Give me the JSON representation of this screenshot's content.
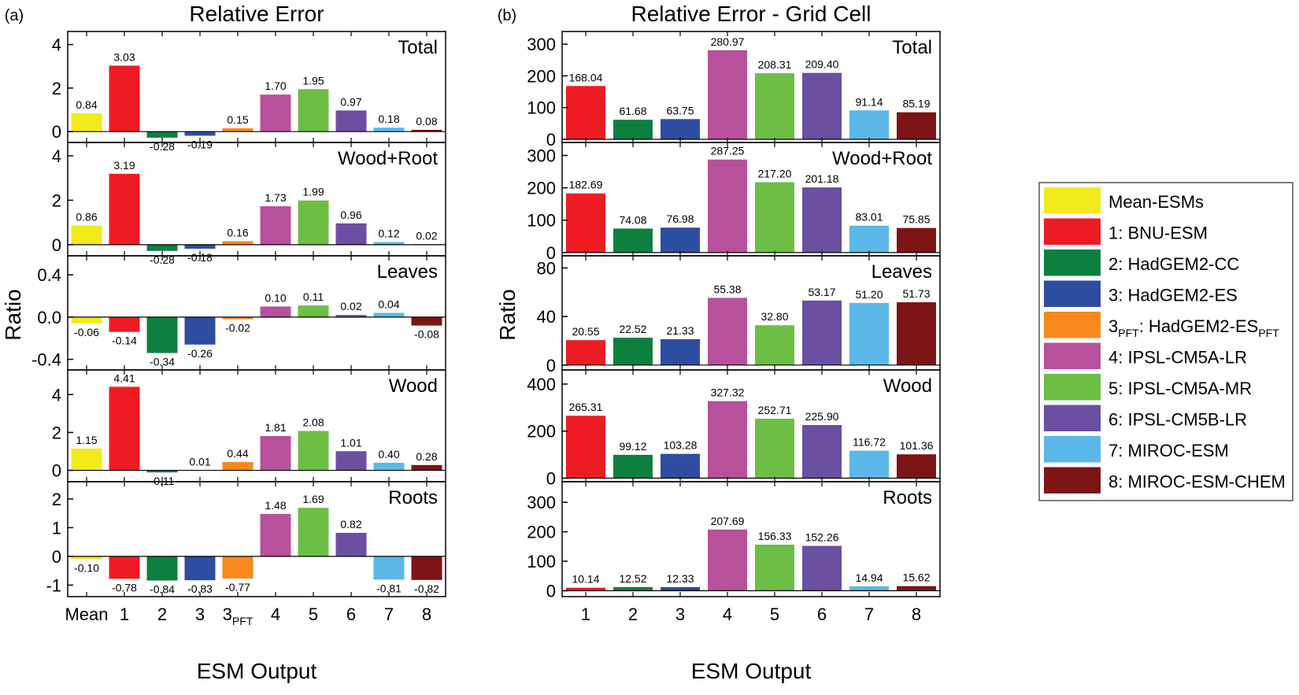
{
  "categories_a": [
    "Mean",
    "1",
    "2",
    "3",
    "3PFT",
    "4",
    "5",
    "6",
    "7",
    "8"
  ],
  "categories_b": [
    "1",
    "2",
    "3",
    "4",
    "5",
    "6",
    "7",
    "8"
  ],
  "colors": {
    "Mean": "#f2ea1d",
    "1": "#ed1c24",
    "2": "#0d8040",
    "3": "#2e4da0",
    "3PFT": "#f7891f",
    "4": "#b8519c",
    "5": "#6cbf44",
    "6": "#6b4fa1",
    "7": "#5bb8e8",
    "8": "#7d1416"
  },
  "legend": [
    {
      "key": "Mean",
      "label": "Mean-ESMs"
    },
    {
      "key": "1",
      "label": "1: BNU-ESM"
    },
    {
      "key": "2",
      "label": "2: HadGEM2-CC"
    },
    {
      "key": "3",
      "label": "3: HadGEM2-ES"
    },
    {
      "key": "3PFT",
      "label": "3",
      "sub": "PFT",
      "label2": ": HadGEM2-ES",
      "sub2": "PFT"
    },
    {
      "key": "4",
      "label": "4: IPSL-CM5A-LR"
    },
    {
      "key": "5",
      "label": "5: IPSL-CM5A-MR"
    },
    {
      "key": "6",
      "label": "6: IPSL-CM5B-LR"
    },
    {
      "key": "7",
      "label": "7: MIROC-ESM"
    },
    {
      "key": "8",
      "label": "8: MIROC-ESM-CHEM"
    }
  ],
  "chart_data": [
    {
      "type": "bar",
      "tag": "(a)",
      "title": "Relative Error",
      "xlabel": "ESM Output",
      "ylabel": "Ratio",
      "x_tick_labels": [
        {
          "text": "Mean"
        },
        {
          "text": "1"
        },
        {
          "text": "2"
        },
        {
          "text": "3"
        },
        {
          "text": "3",
          "sub": "PFT"
        },
        {
          "text": "4"
        },
        {
          "text": "5"
        },
        {
          "text": "6"
        },
        {
          "text": "7"
        },
        {
          "text": "8"
        }
      ],
      "categories": [
        "Mean",
        "1",
        "2",
        "3",
        "3PFT",
        "4",
        "5",
        "6",
        "7",
        "8"
      ],
      "panels": [
        {
          "name": "Total",
          "ylim": [
            -0.5,
            4.6
          ],
          "ticks": [
            0,
            2,
            4
          ],
          "tick_labels": [
            "0",
            "2",
            "4"
          ],
          "values": [
            0.84,
            3.03,
            -0.28,
            -0.19,
            0.15,
            1.7,
            1.95,
            0.97,
            0.18,
            0.08
          ],
          "labels": [
            "0.84",
            "3.03",
            "-0.28",
            "-0.19",
            "0.15",
            "1.70",
            "1.95",
            "0.97",
            "0.18",
            "0.08"
          ]
        },
        {
          "name": "Wood+Root",
          "ylim": [
            -0.5,
            4.6
          ],
          "ticks": [
            0,
            2,
            4
          ],
          "tick_labels": [
            "0",
            "2",
            "4"
          ],
          "values": [
            0.86,
            3.19,
            -0.28,
            -0.18,
            0.16,
            1.73,
            1.99,
            0.96,
            0.12,
            0.02
          ],
          "labels": [
            "0.86",
            "3.19",
            "-0.28",
            "-0.18",
            "0.16",
            "1.73",
            "1.99",
            "0.96",
            "0.12",
            "0.02"
          ]
        },
        {
          "name": "Leaves",
          "ylim": [
            -0.5,
            0.58
          ],
          "ticks": [
            -0.4,
            0,
            0.4
          ],
          "tick_labels": [
            "-0.4",
            "0.0",
            "0.4"
          ],
          "values": [
            -0.06,
            -0.14,
            -0.34,
            -0.26,
            -0.02,
            0.1,
            0.11,
            0.02,
            0.04,
            -0.08
          ],
          "labels": [
            "-0.06",
            "-0.14",
            "-0.34",
            "-0.26",
            "-0.02",
            "0.10",
            "0.11",
            "0.02",
            "0.04",
            "-0.08"
          ]
        },
        {
          "name": "Wood",
          "ylim": [
            -0.6,
            5.3
          ],
          "ticks": [
            0,
            2,
            4
          ],
          "tick_labels": [
            "0",
            "2",
            "4"
          ],
          "values": [
            1.15,
            4.41,
            -0.11,
            0.01,
            0.44,
            1.81,
            2.08,
            1.01,
            0.4,
            0.28
          ],
          "labels": [
            "1.15",
            "4.41",
            "-0.11",
            "0.01",
            "0.44",
            "1.81",
            "2.08",
            "1.01",
            "0.40",
            "0.28"
          ]
        },
        {
          "name": "Roots",
          "ylim": [
            -1.4,
            2.6
          ],
          "ticks": [
            -1,
            0,
            1,
            2
          ],
          "tick_labels": [
            "-1",
            "0",
            "1",
            "2"
          ],
          "values": [
            -0.1,
            -0.78,
            -0.84,
            -0.83,
            -0.77,
            1.48,
            1.69,
            0.82,
            -0.81,
            -0.82
          ],
          "labels": [
            "-0.10",
            "-0.78",
            "-0.84",
            "-0.83",
            "-0.77",
            "1.48",
            "1.69",
            "0.82",
            "-0.81",
            "-0.82"
          ]
        }
      ]
    },
    {
      "type": "bar",
      "tag": "(b)",
      "title": "Relative Error - Grid Cell",
      "xlabel": "ESM Output",
      "ylabel": "Ratio",
      "x_tick_labels": [
        {
          "text": "1"
        },
        {
          "text": "2"
        },
        {
          "text": "3"
        },
        {
          "text": "4"
        },
        {
          "text": "5"
        },
        {
          "text": "6"
        },
        {
          "text": "7"
        },
        {
          "text": "8"
        }
      ],
      "categories": [
        "1",
        "2",
        "3",
        "4",
        "5",
        "6",
        "7",
        "8"
      ],
      "panels": [
        {
          "name": "Total",
          "ylim": [
            -10,
            340
          ],
          "ticks": [
            0,
            100,
            200,
            300
          ],
          "tick_labels": [
            "0",
            "100",
            "200",
            "300"
          ],
          "values": [
            168.04,
            61.68,
            63.75,
            280.97,
            208.31,
            209.4,
            91.14,
            85.19
          ],
          "labels": [
            "168.04",
            "61.68",
            "63.75",
            "280.97",
            "208.31",
            "209.40",
            "91.14",
            "85.19"
          ]
        },
        {
          "name": "Wood+Root",
          "ylim": [
            -10,
            340
          ],
          "ticks": [
            0,
            100,
            200,
            300
          ],
          "tick_labels": [
            "0",
            "100",
            "200",
            "300"
          ],
          "values": [
            182.69,
            74.08,
            76.98,
            287.25,
            217.2,
            201.18,
            83.01,
            75.85
          ],
          "labels": [
            "182.69",
            "74.08",
            "76.98",
            "287.25",
            "217.20",
            "201.18",
            "83.01",
            "75.85"
          ]
        },
        {
          "name": "Leaves",
          "ylim": [
            -4,
            90
          ],
          "ticks": [
            0,
            40,
            80
          ],
          "tick_labels": [
            "0",
            "40",
            "80"
          ],
          "values": [
            20.55,
            22.52,
            21.33,
            55.38,
            32.8,
            53.17,
            51.2,
            51.73
          ],
          "labels": [
            "20.55",
            "22.52",
            "21.33",
            "55.38",
            "32.80",
            "53.17",
            "51.20",
            "51.73"
          ]
        },
        {
          "name": "Wood",
          "ylim": [
            -15,
            460
          ],
          "ticks": [
            0,
            200,
            400
          ],
          "tick_labels": [
            "0",
            "200",
            "400"
          ],
          "values": [
            265.31,
            99.12,
            103.28,
            327.32,
            252.71,
            225.9,
            116.72,
            101.36
          ],
          "labels": [
            "265.31",
            "99.12",
            "103.28",
            "327.32",
            "252.71",
            "225.90",
            "116.72",
            "101.36"
          ]
        },
        {
          "name": "Roots",
          "ylim": [
            -20,
            370
          ],
          "ticks": [
            0,
            100,
            200,
            300
          ],
          "tick_labels": [
            "0",
            "100",
            "200",
            "300"
          ],
          "values": [
            10.14,
            12.52,
            12.33,
            207.69,
            156.33,
            152.26,
            14.94,
            15.62
          ],
          "labels": [
            "10.14",
            "12.52",
            "12.33",
            "207.69",
            "156.33",
            "152.26",
            "14.94",
            "15.62"
          ]
        }
      ]
    }
  ]
}
